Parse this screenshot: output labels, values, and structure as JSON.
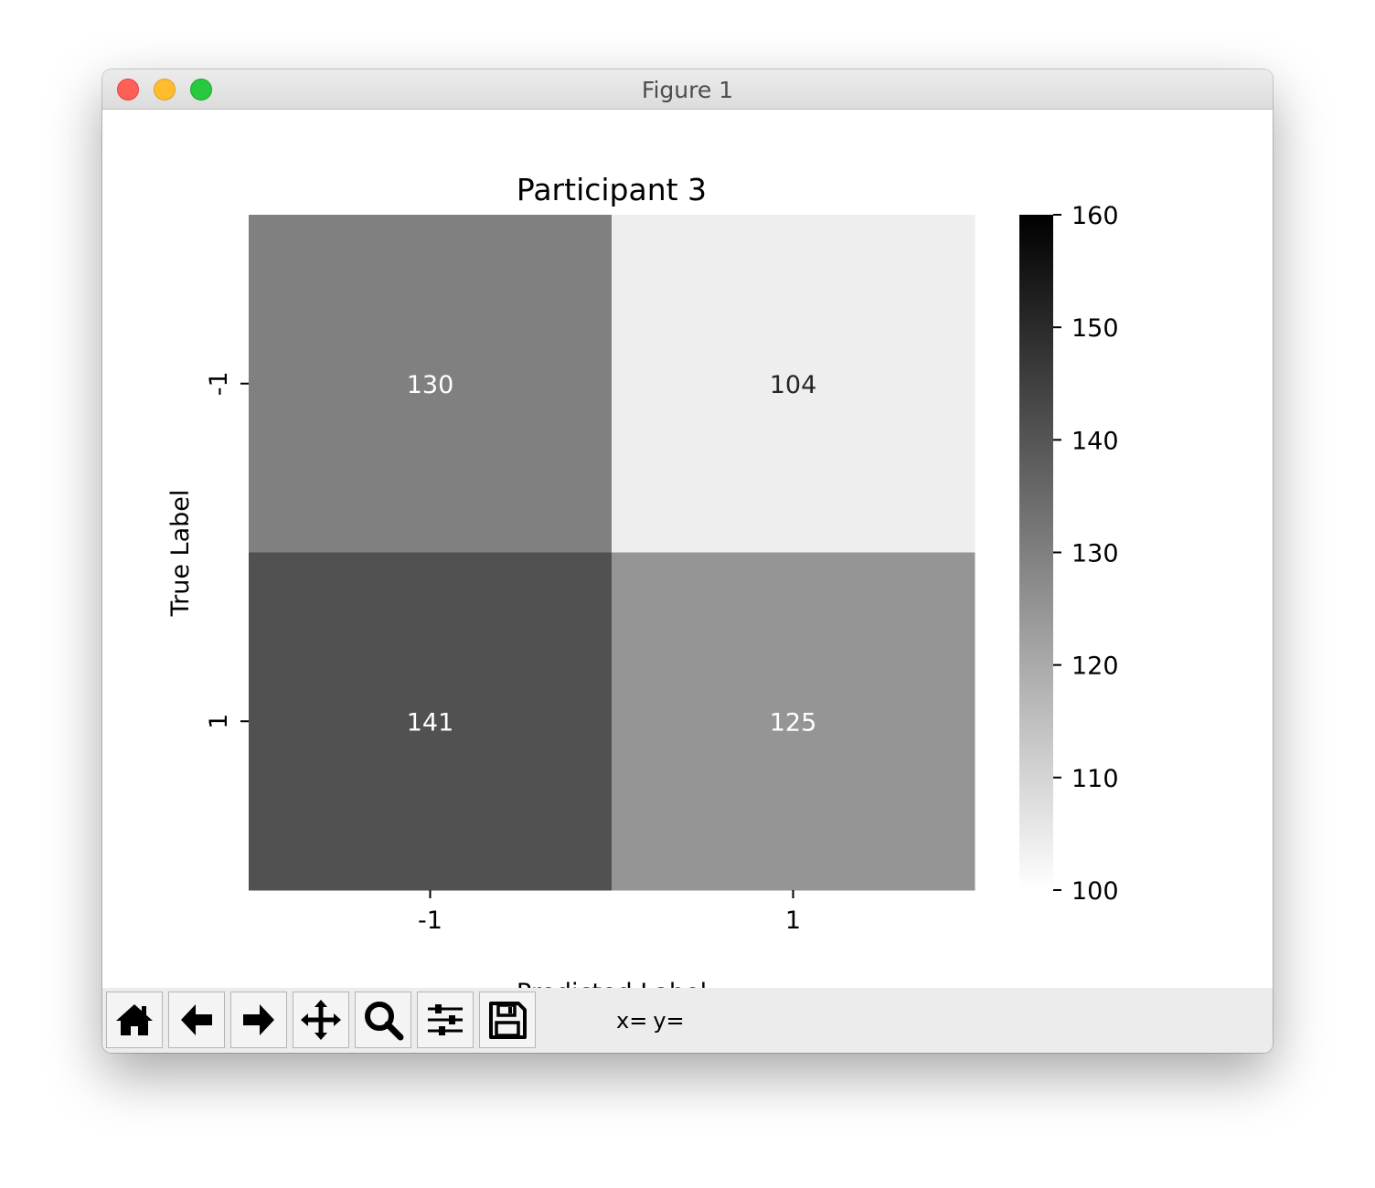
{
  "window": {
    "title": "Figure 1"
  },
  "chart_data": {
    "type": "heatmap",
    "title": "Participant 3",
    "xlabel": "Predicted Label",
    "ylabel": "True Label",
    "x_categories": [
      "-1",
      "1"
    ],
    "y_categories": [
      "-1",
      "1"
    ],
    "values": [
      [
        130,
        104
      ],
      [
        141,
        125
      ]
    ],
    "colorbar": {
      "min": 100,
      "max": 160,
      "ticks": [
        "100",
        "110",
        "120",
        "130",
        "140",
        "150",
        "160"
      ],
      "colormap": "white-to-black"
    }
  },
  "toolbar": {
    "buttons": [
      {
        "name": "home-icon",
        "tooltip": ""
      },
      {
        "name": "back-arrow-icon",
        "tooltip": ""
      },
      {
        "name": "forward-arrow-icon",
        "tooltip": ""
      },
      {
        "name": "pan-icon",
        "tooltip": ""
      },
      {
        "name": "zoom-magnifier-icon",
        "tooltip": ""
      },
      {
        "name": "subplots-sliders-icon",
        "tooltip": ""
      },
      {
        "name": "save-floppy-icon",
        "tooltip": ""
      }
    ],
    "x_label": "x=",
    "y_label": "y="
  }
}
